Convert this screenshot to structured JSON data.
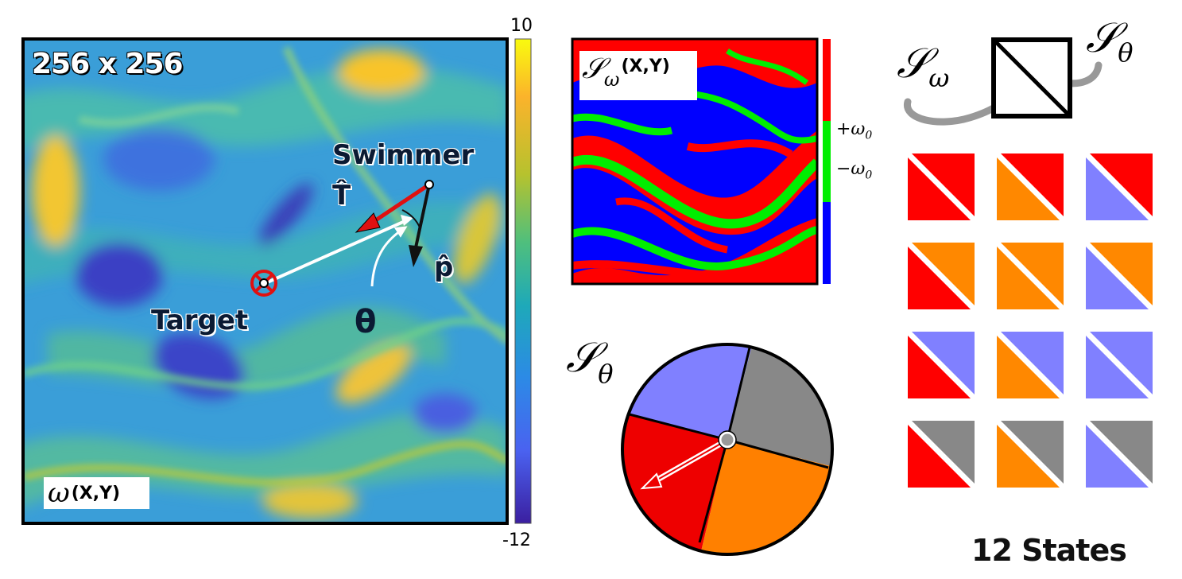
{
  "vorticity_panel": {
    "resolution_label": "256 x 256",
    "field_label_symbol": "ω",
    "field_label_args": "(X,Y)",
    "swimmer_label": "Swimmer",
    "target_label": "Target",
    "t_hat_label": "T̂",
    "p_hat_label": "p̂",
    "theta_label": "θ",
    "colorbar": {
      "max": "10",
      "min": "-12",
      "colors": [
        "#f9fb0e",
        "#fbb32b",
        "#b6c22e",
        "#4fbf7d",
        "#1ea9b9",
        "#2c8ae6",
        "#4a62f0",
        "#3b1fa0"
      ]
    },
    "arrow_colors": {
      "target": "#ffffff",
      "heading": "#e01010",
      "orientation": "#111111"
    }
  },
  "s_omega_panel": {
    "label_symbol": "𝒮",
    "label_sub": "ω",
    "label_args": "(X,Y)",
    "legend_plus": "+ω",
    "legend_plus_sub": "0",
    "legend_minus": "−ω",
    "legend_minus_sub": "0",
    "colors": {
      "positive": "#ff0000",
      "zero": "#00ee00",
      "negative": "#0000ff"
    }
  },
  "s_theta_panel": {
    "label_symbol": "𝒮",
    "label_sub": "θ",
    "sector_colors": [
      "#8080ff",
      "#888888",
      "#ff8000",
      "#ee0000"
    ]
  },
  "states_panel": {
    "combo_label_omega_symbol": "𝒮",
    "combo_label_omega_sub": "ω",
    "combo_label_theta_symbol": "𝒮",
    "combo_label_theta_sub": "θ",
    "caption": "12 States",
    "grid": [
      [
        "red",
        "red"
      ],
      [
        "orange",
        "red"
      ],
      [
        "lavender",
        "red"
      ],
      [
        "red",
        "orange"
      ],
      [
        "orange",
        "orange"
      ],
      [
        "lavender",
        "orange"
      ],
      [
        "red",
        "lavender"
      ],
      [
        "orange",
        "lavender"
      ],
      [
        "lavender",
        "lavender"
      ],
      [
        "red",
        "gray"
      ],
      [
        "orange",
        "gray"
      ],
      [
        "lavender",
        "gray"
      ]
    ],
    "palette": {
      "red": "#ff0000",
      "orange": "#ff8800",
      "lavender": "#8080ff",
      "gray": "#888888"
    }
  }
}
